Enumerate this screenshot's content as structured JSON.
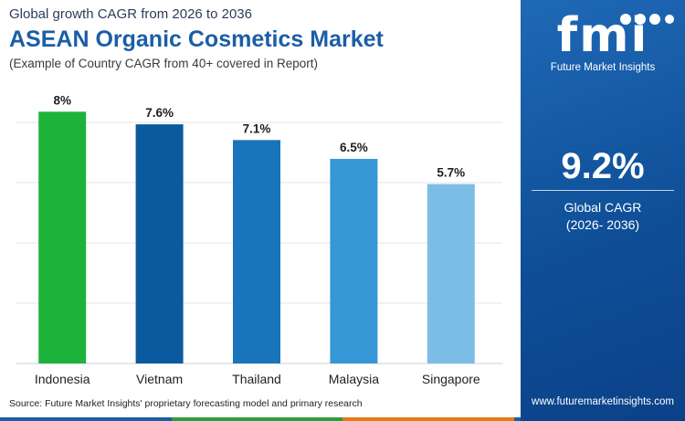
{
  "header": {
    "subtitle": "Global growth CAGR from 2026 to 2036",
    "title": "ASEAN Organic Cosmetics Market",
    "note": "(Example of Country CAGR from 40+ covered in Report)"
  },
  "chart_data": {
    "type": "bar",
    "categories": [
      "Indonesia",
      "Vietnam",
      "Thailand",
      "Malaysia",
      "Singapore"
    ],
    "values": [
      8,
      7.6,
      7.1,
      6.5,
      5.7
    ],
    "value_labels": [
      "8%",
      "7.6%",
      "7.1%",
      "6.5%",
      "5.7%"
    ],
    "colors": [
      "#1db33b",
      "#0b5aa0",
      "#1875b9",
      "#3597d6",
      "#7cbde6"
    ],
    "ylim": [
      0,
      8.3
    ],
    "grid": true
  },
  "source": "Source: Future Market Insights' proprietary forecasting model and primary research",
  "panel": {
    "logo_mark": "fmi",
    "logo_text": "Future Market Insights",
    "big_value": "9.2%",
    "cagr_label": "Global CAGR",
    "cagr_period": "(2026- 2036)",
    "website": "www.futuremarketinsights.com"
  },
  "footer_colors": [
    "#1b5ea6",
    "#2e9d3d",
    "#e47a1b",
    "#1b5ea6"
  ]
}
